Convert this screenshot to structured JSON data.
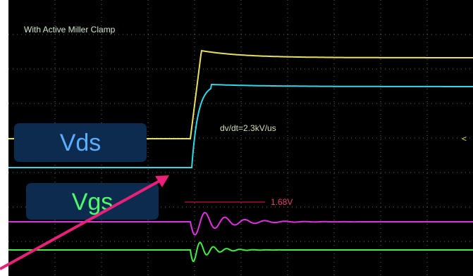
{
  "title": "With Active Miller Clamp",
  "annotations": {
    "dvdt": "dv/dt=2.3kV/us",
    "threshold": "1.68V"
  },
  "labels": {
    "vds": "Vds",
    "vgs": "Vgs"
  }
}
